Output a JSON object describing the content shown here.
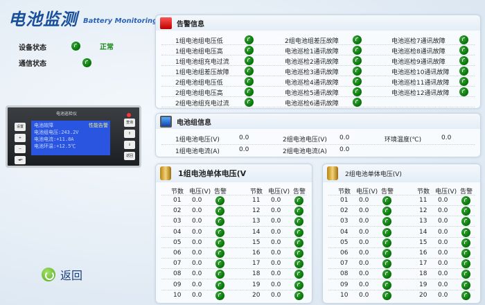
{
  "header": {
    "title": "电池监测",
    "subtitle": "Battery Monitoring"
  },
  "status": {
    "device_label": "设备状态",
    "device_value": "正常",
    "comm_label": "通信状态"
  },
  "device_image": {
    "panel_title": "电池巡检仪",
    "lcd_lines": [
      "电池故障",
      "电池组电压:243.2V",
      "电池电流:+11.8A",
      "电池环温:+12.5℃"
    ],
    "lcd_tag": "性能告警",
    "buttons": [
      "设置",
      "+",
      "−",
      "◄═",
      "查询",
      "⇑",
      "⇓",
      "返回"
    ]
  },
  "alarm": {
    "title": "告警信息",
    "columns": [
      [
        "1组电池组电压低",
        "1组电池组电压高",
        "1组电池组充电过流",
        "1组电池组差压故障",
        "2组电池组电压低",
        "2组电池组电压高",
        "2组电池组充电过流"
      ],
      [
        "2组电池组差压故障",
        "电池巡检1通讯故障",
        "电池巡检2通讯故障",
        "电池巡检3通讯故障",
        "电池巡检4通讯故障",
        "电池巡检5通讯故障",
        "电池巡检6通讯故障"
      ],
      [
        "电池巡检7通讯故障",
        "电池巡检8通讯故障",
        "电池巡检9通讯故障",
        "电池巡检10通讯故障",
        "电池巡检11通讯故障",
        "电池巡检12通讯故障"
      ]
    ]
  },
  "group_info": {
    "title": "电池组信息",
    "rows": [
      [
        {
          "label": "1组电池电压(V)",
          "value": "0.0"
        },
        {
          "label": "2组电池电压(V)",
          "value": "0.0"
        },
        {
          "label": "环境温度(℃)",
          "value": "0.0"
        }
      ],
      [
        {
          "label": "1组电池电流(A)",
          "value": "0.0"
        },
        {
          "label": "2组电池电流(A)",
          "value": "0.0"
        }
      ]
    ]
  },
  "cells": [
    {
      "title": "1组电池单体电压(V",
      "headers": [
        "节数",
        "电压(V)",
        "告警"
      ],
      "left": [
        [
          "01",
          "0.0"
        ],
        [
          "02",
          "0.0"
        ],
        [
          "03",
          "0.0"
        ],
        [
          "04",
          "0.0"
        ],
        [
          "05",
          "0.0"
        ],
        [
          "06",
          "0.0"
        ],
        [
          "07",
          "0.0"
        ],
        [
          "08",
          "0.0"
        ],
        [
          "09",
          "0.0"
        ],
        [
          "10",
          "0.0"
        ]
      ],
      "right": [
        [
          "11",
          "0.0"
        ],
        [
          "12",
          "0.0"
        ],
        [
          "13",
          "0.0"
        ],
        [
          "14",
          "0.0"
        ],
        [
          "15",
          "0.0"
        ],
        [
          "16",
          "0.0"
        ],
        [
          "17",
          "0.0"
        ],
        [
          "18",
          "0.0"
        ],
        [
          "19",
          "0.0"
        ],
        [
          "20",
          "0.0"
        ]
      ]
    },
    {
      "title": "2组电池单体电压(V)",
      "headers": [
        "节数",
        "电压(V)",
        "告警"
      ],
      "left": [
        [
          "01",
          "0.0"
        ],
        [
          "02",
          "0.0"
        ],
        [
          "03",
          "0.0"
        ],
        [
          "04",
          "0.0"
        ],
        [
          "05",
          "0.0"
        ],
        [
          "06",
          "0.0"
        ],
        [
          "07",
          "0.0"
        ],
        [
          "08",
          "0.0"
        ],
        [
          "09",
          "0.0"
        ],
        [
          "10",
          "0.0"
        ]
      ],
      "right": [
        [
          "11",
          "0.0"
        ],
        [
          "12",
          "0.0"
        ],
        [
          "13",
          "0.0"
        ],
        [
          "14",
          "0.0"
        ],
        [
          "15",
          "0.0"
        ],
        [
          "16",
          "0.0"
        ],
        [
          "17",
          "0.0"
        ],
        [
          "18",
          "0.0"
        ],
        [
          "19",
          "0.0"
        ],
        [
          "20",
          "0.0"
        ]
      ]
    }
  ],
  "back_label": "返回",
  "colors": {
    "ok": "#0a7a0a",
    "title": "#1a4f9c",
    "status_text": "#1a8a1a"
  }
}
